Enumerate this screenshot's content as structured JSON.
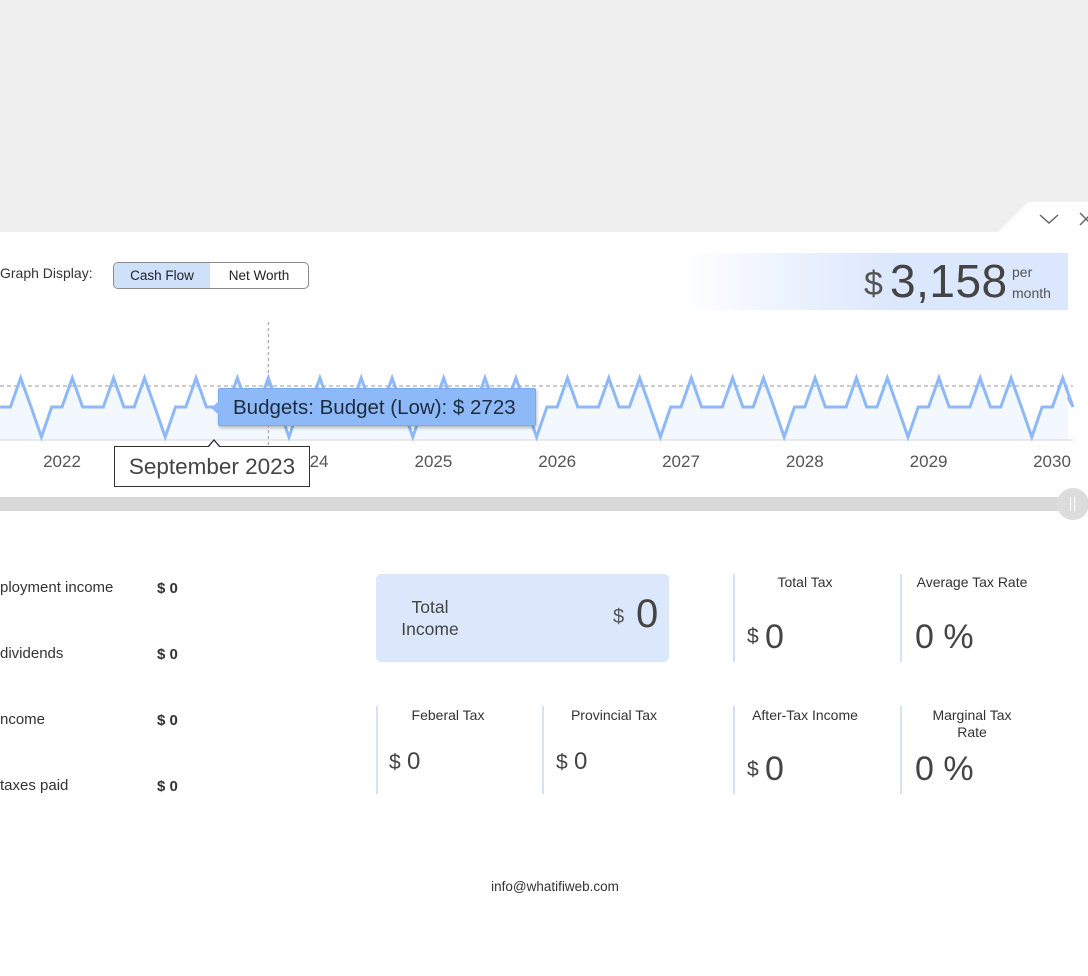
{
  "graph_display": {
    "label": "Graph Display:",
    "options": [
      "Cash Flow",
      "Net Worth"
    ],
    "selected": "Cash Flow"
  },
  "summary": {
    "currency": "$",
    "amount": "3,158",
    "period": "per month"
  },
  "chart_data": {
    "type": "line",
    "x_range": [
      "2021-05",
      "2030-01"
    ],
    "x_tick_labels": [
      "2022",
      "2023",
      "2024",
      "2025",
      "2026",
      "2027",
      "2028",
      "2029",
      "2030"
    ],
    "series": [
      {
        "name": "Budgets: Budget (Low)",
        "color": "#8db9f8",
        "pattern_per_year": {
          "base": 2723,
          "spikes": [
            "Feb",
            "Jun",
            "Sep"
          ],
          "dip": "Nov"
        }
      }
    ],
    "reference_line": "dashed",
    "hover": {
      "date": "September 2023",
      "tooltip": "Budgets: Budget (Low): $ 2723"
    }
  },
  "income_rows": [
    {
      "label": "ployment income",
      "value": "$ 0"
    },
    {
      "label": "dividends",
      "value": "$ 0"
    },
    {
      "label": "ncome",
      "value": "$ 0"
    },
    {
      "label": "taxes paid",
      "value": "$ 0"
    }
  ],
  "total_income": {
    "label": "Total Income",
    "currency": "$",
    "value": "0"
  },
  "cards": {
    "total_tax": {
      "title": "Total Tax",
      "currency": "$",
      "value": "0"
    },
    "avg_tax_rate": {
      "title": "Average Tax Rate",
      "value": "0 %"
    },
    "federal_tax": {
      "title": "Feberal Tax",
      "currency": "$",
      "value": "0"
    },
    "provincial_tax": {
      "title": "Provincial Tax",
      "currency": "$",
      "value": "0"
    },
    "after_tax": {
      "title": "After-Tax Income",
      "currency": "$",
      "value": "0"
    },
    "marginal_tax_rate": {
      "title": "Marginal Tax Rate",
      "value": "0 %"
    }
  },
  "footer": {
    "email": "info@whatifiweb.com"
  }
}
